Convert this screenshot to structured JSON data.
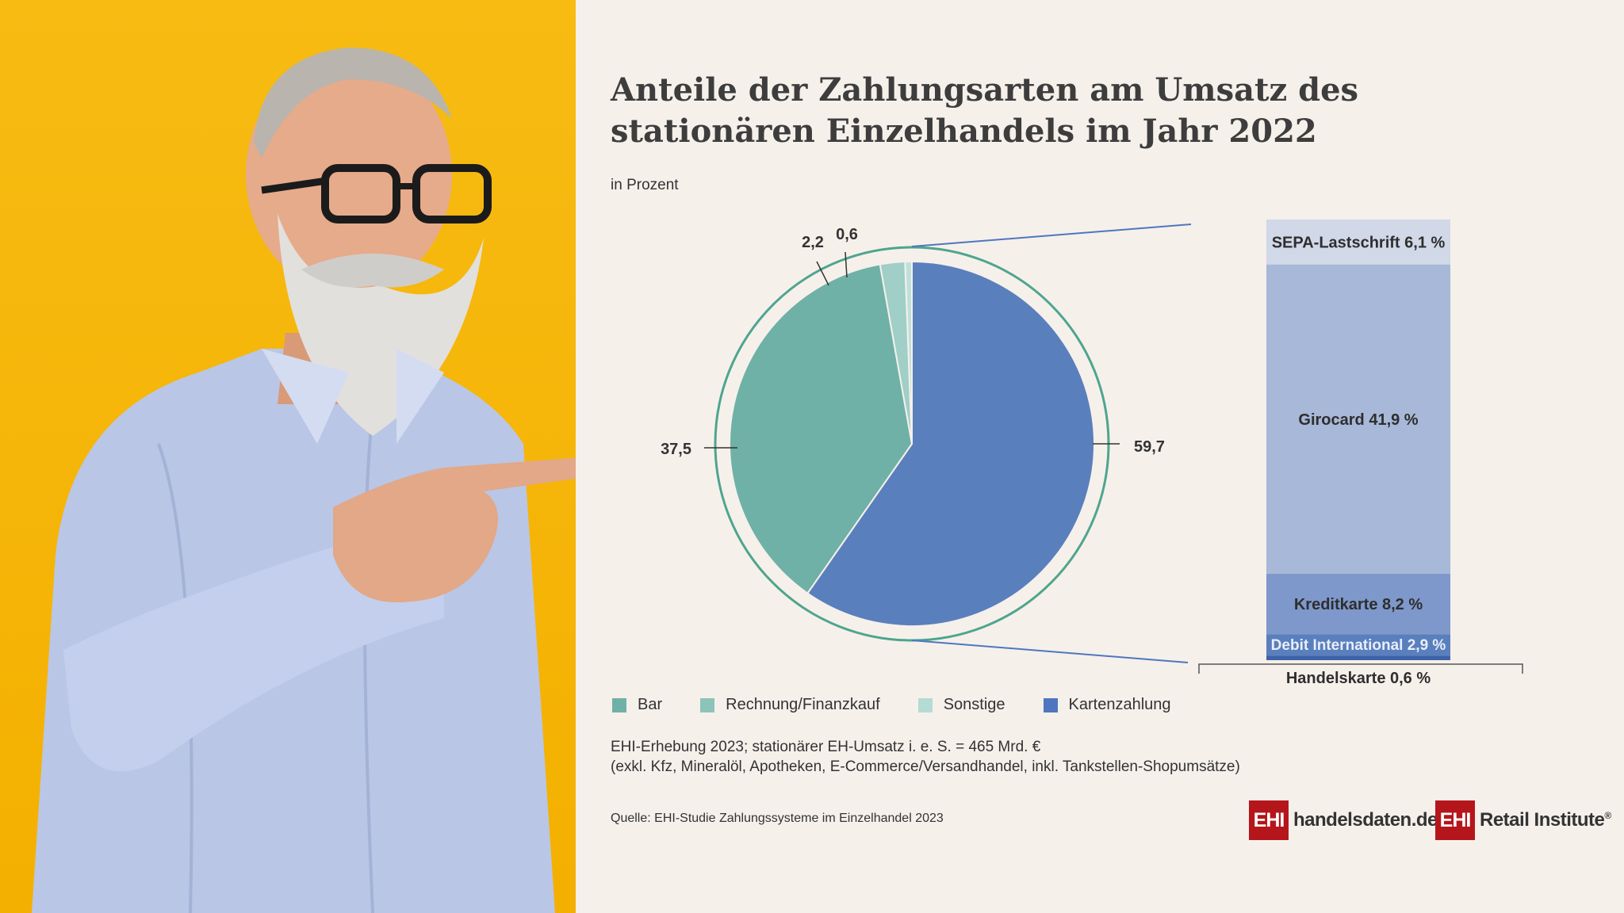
{
  "chart_data": {
    "type": "pie",
    "title": "Anteile der Zahlungsarten am Umsatz des stationären Einzelhandels im Jahr 2022",
    "subtitle": "in Prozent",
    "slices": [
      {
        "name": "Kartenzahlung",
        "value": 59.7,
        "label": "59,7",
        "color": "#5a7fbd"
      },
      {
        "name": "Bar",
        "value": 37.5,
        "label": "37,5",
        "color": "#6fb1a6"
      },
      {
        "name": "Rechnung/Finanzkauf",
        "value": 2.2,
        "label": "2,2",
        "color": "#9fcfc6"
      },
      {
        "name": "Sonstige",
        "value": 0.6,
        "label": "0,6",
        "color": "#bfe0da"
      }
    ],
    "breakdown": {
      "of": "Kartenzahlung",
      "segments": [
        {
          "name": "SEPA-Lastschrift",
          "value": 6.1,
          "label": "SEPA-Lastschrift 6,1 %",
          "color": "#d1d8e7"
        },
        {
          "name": "Girocard",
          "value": 41.9,
          "label": "Girocard 41,9 %",
          "color": "#a7b8d8"
        },
        {
          "name": "Kreditkarte",
          "value": 8.2,
          "label": "Kreditkarte 8,2 %",
          "color": "#7e98cb"
        },
        {
          "name": "Debit International",
          "value": 2.9,
          "label": "Debit International 2,9 %",
          "color": "#5a7fbd"
        },
        {
          "name": "Handelskarte",
          "value": 0.6,
          "label": "Handelskarte 0,6 %",
          "color": "#3f63a8"
        }
      ]
    },
    "legend": [
      {
        "label": "Bar",
        "color": "#6fb1a6"
      },
      {
        "label": "Rechnung/Finanzkauf",
        "color": "#8cc4b9"
      },
      {
        "label": "Sonstige",
        "color": "#b4dbd4"
      },
      {
        "label": "Kartenzahlung",
        "color": "#4f76bf"
      }
    ],
    "legend_placement": "bottom-left"
  },
  "note": {
    "line1": "EHI-Erhebung 2023; stationärer EH-Umsatz i. e. S. = 465 Mrd. €",
    "line2": "(exkl. Kfz, Mineralöl, Apotheken, E-Commerce/Versandhandel, inkl. Tankstellen-Shopumsätze)"
  },
  "source": "Quelle: EHI-Studie Zahlungssysteme im Einzelhandel 2023",
  "logos": {
    "left_box": "EHI",
    "left_text": "handelsdaten.de",
    "right_box": "EHI",
    "right_text": "Retail Institute",
    "right_mark": "®"
  },
  "colors": {
    "background": "#f6f0eb",
    "photo_background": "#f5b300",
    "logo_red": "#b5161b",
    "ring": "#4ea58f",
    "connector": "#4f76bf"
  }
}
